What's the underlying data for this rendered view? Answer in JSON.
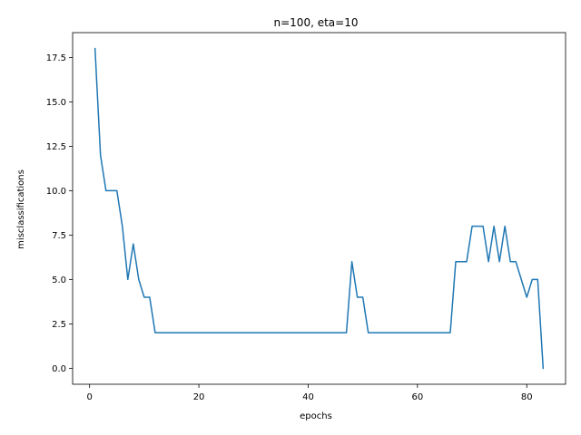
{
  "chart_data": {
    "type": "line",
    "title": "n=100, eta=10",
    "xlabel": "epochs",
    "ylabel": "misclassifications",
    "xlim": [
      -3.1,
      87.1
    ],
    "ylim": [
      -0.9,
      18.9
    ],
    "xticks": [
      0,
      20,
      40,
      60,
      80
    ],
    "xtick_labels": [
      "0",
      "20",
      "40",
      "60",
      "80"
    ],
    "yticks": [
      0,
      2.5,
      5,
      7.5,
      10,
      12.5,
      15,
      17.5
    ],
    "ytick_labels": [
      "0.0",
      "2.5",
      "5.0",
      "7.5",
      "10.0",
      "12.5",
      "15.0",
      "17.5"
    ],
    "grid": false,
    "line_color": "#1f77b4",
    "series": [
      {
        "x": [
          1,
          2,
          3,
          4,
          5,
          6,
          7,
          8,
          9,
          10,
          11,
          12,
          13,
          14,
          15,
          16,
          17,
          18,
          19,
          20,
          21,
          22,
          23,
          24,
          25,
          26,
          27,
          28,
          29,
          30,
          31,
          32,
          33,
          34,
          35,
          36,
          37,
          38,
          39,
          40,
          41,
          42,
          43,
          44,
          45,
          46,
          47,
          48,
          49,
          50,
          51,
          52,
          53,
          54,
          55,
          56,
          57,
          58,
          59,
          60,
          61,
          62,
          63,
          64,
          65,
          66,
          67,
          68,
          69,
          70,
          71,
          72,
          73,
          74,
          75,
          76,
          77,
          78,
          79,
          80,
          81,
          82,
          83
        ],
        "values": [
          18,
          12,
          10,
          10,
          10,
          8,
          5,
          7,
          5,
          4,
          4,
          2,
          2,
          2,
          2,
          2,
          2,
          2,
          2,
          2,
          2,
          2,
          2,
          2,
          2,
          2,
          2,
          2,
          2,
          2,
          2,
          2,
          2,
          2,
          2,
          2,
          2,
          2,
          2,
          2,
          2,
          2,
          2,
          2,
          2,
          2,
          2,
          6,
          4,
          4,
          2,
          2,
          2,
          2,
          2,
          2,
          2,
          2,
          2,
          2,
          2,
          2,
          2,
          2,
          2,
          2,
          6,
          6,
          6,
          8,
          8,
          8,
          6,
          8,
          6,
          8,
          6,
          6,
          5,
          4,
          5,
          5,
          0
        ]
      }
    ]
  }
}
